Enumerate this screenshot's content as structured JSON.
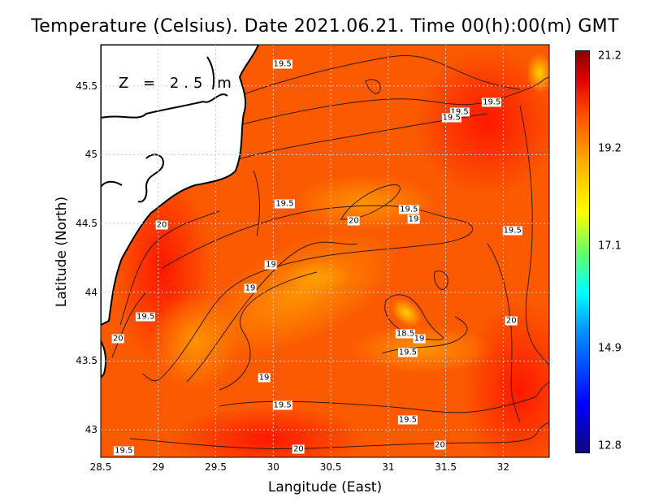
{
  "title": "Temperature (Celsius). Date 2021.06.21. Time 00(h):00(m)  GMT",
  "depth_label": "Z = 2.5 m",
  "xlabel": "Langitude (East)",
  "ylabel": "Latitude (North)",
  "x_ticks": [
    "28.5",
    "29",
    "29.5",
    "30",
    "30.5",
    "31",
    "31.5",
    "32"
  ],
  "y_ticks": [
    "45.5",
    "45",
    "44.5",
    "44",
    "43.5",
    "43"
  ],
  "colorbar_ticks": [
    "21.2",
    "19.2",
    "17.1",
    "14.9",
    "12.8"
  ],
  "contour_labels": [
    {
      "text": "19.5",
      "lon": 30.08,
      "lat": 45.66
    },
    {
      "text": "19.5",
      "lon": 31.9,
      "lat": 45.38
    },
    {
      "text": "19.5",
      "lon": 31.62,
      "lat": 45.31
    },
    {
      "text": "19.5",
      "lon": 31.55,
      "lat": 45.27
    },
    {
      "text": "19.5",
      "lon": 30.1,
      "lat": 44.64
    },
    {
      "text": "19.5",
      "lon": 31.18,
      "lat": 44.6
    },
    {
      "text": "19",
      "lon": 31.22,
      "lat": 44.53
    },
    {
      "text": "20",
      "lon": 30.7,
      "lat": 44.52
    },
    {
      "text": "20",
      "lon": 29.03,
      "lat": 44.49
    },
    {
      "text": "19.5",
      "lon": 32.08,
      "lat": 44.45
    },
    {
      "text": "19",
      "lon": 29.98,
      "lat": 44.2
    },
    {
      "text": "19",
      "lon": 29.8,
      "lat": 44.03
    },
    {
      "text": "19.5",
      "lon": 28.89,
      "lat": 43.82
    },
    {
      "text": "20",
      "lon": 32.07,
      "lat": 43.79
    },
    {
      "text": "20",
      "lon": 28.65,
      "lat": 43.66
    },
    {
      "text": "18.5",
      "lon": 31.15,
      "lat": 43.7
    },
    {
      "text": "19",
      "lon": 31.27,
      "lat": 43.66
    },
    {
      "text": "19.5",
      "lon": 31.17,
      "lat": 43.56
    },
    {
      "text": "19",
      "lon": 29.92,
      "lat": 43.38
    },
    {
      "text": "19.5",
      "lon": 30.08,
      "lat": 43.18
    },
    {
      "text": "19.5",
      "lon": 31.17,
      "lat": 43.07
    },
    {
      "text": "20",
      "lon": 31.45,
      "lat": 42.89
    },
    {
      "text": "20",
      "lon": 30.22,
      "lat": 42.86
    },
    {
      "text": "19.5",
      "lon": 28.7,
      "lat": 42.85
    }
  ],
  "colors": {
    "sea_main": "#fb5a00",
    "sea_warm": "#ff2a00",
    "sea_cool": "#ffa000",
    "land": "#ffffff",
    "coast": "#000000",
    "contour": "#3a1a00",
    "grid": "#cfcfcf"
  },
  "map_extent": {
    "lon": [
      28.5,
      32.4
    ],
    "lat": [
      42.8,
      45.8
    ]
  }
}
